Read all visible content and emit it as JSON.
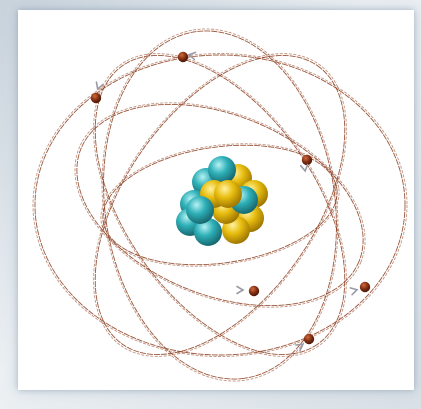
{
  "diagram": {
    "subject": "atom-model",
    "colors": {
      "background": "#ffffff",
      "orbit": "#8a3a1a",
      "electron": "#7a2a10",
      "arrow": "#9a9aa6",
      "proton": "#e0b000",
      "neutron": "#2aa8b0"
    },
    "nucleus": {
      "particles": [
        {
          "kind": "neutron"
        },
        {
          "kind": "proton"
        },
        {
          "kind": "neutron"
        },
        {
          "kind": "proton"
        },
        {
          "kind": "neutron"
        },
        {
          "kind": "proton"
        },
        {
          "kind": "neutron"
        },
        {
          "kind": "proton"
        },
        {
          "kind": "neutron"
        },
        {
          "kind": "proton"
        },
        {
          "kind": "neutron"
        },
        {
          "kind": "proton"
        },
        {
          "kind": "neutron"
        },
        {
          "kind": "proton"
        }
      ]
    },
    "electron_count": 7,
    "orbit_count": 6
  }
}
